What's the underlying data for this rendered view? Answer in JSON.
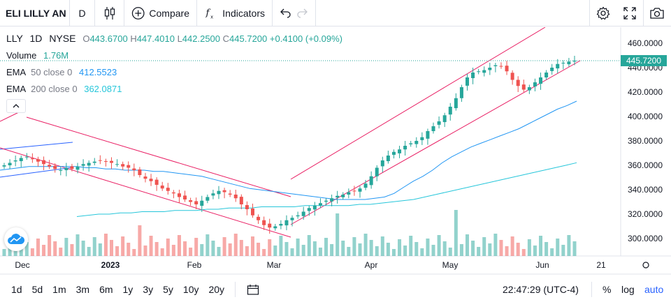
{
  "toolbar": {
    "symbol_name": "ELI LILLY AN",
    "resolution": "D",
    "compare_label": "Compare",
    "indicators_label": "Indicators"
  },
  "legend": {
    "symbol": "LLY",
    "interval": "1D",
    "exchange": "NYSE",
    "o_label": "O",
    "open": "443.6700",
    "h_label": "H",
    "high": "447.4010",
    "l_label": "L",
    "low": "442.2500",
    "c_label": "C",
    "close": "445.7200",
    "change": "+0.4100 (+0.09%)",
    "volume_label": "Volume",
    "volume_value": "1.76M",
    "ema50_label": "EMA",
    "ema50_params": "50 close 0",
    "ema50_value": "412.5523",
    "ema200_label": "EMA",
    "ema200_params": "200 close 0",
    "ema200_value": "362.0871"
  },
  "price_axis": {
    "ticks": [
      "460.0000",
      "440.0000",
      "420.0000",
      "400.0000",
      "380.0000",
      "360.0000",
      "340.0000",
      "320.0000",
      "300.0000"
    ],
    "last_price_label": "445.7200"
  },
  "time_axis": {
    "labels": [
      "Dec",
      "2023",
      "Feb",
      "Mar",
      "Apr",
      "May",
      "Jun",
      "21"
    ]
  },
  "bottom": {
    "ranges": [
      "1d",
      "5d",
      "1m",
      "3m",
      "6m",
      "1y",
      "3y",
      "5y",
      "10y",
      "20y"
    ],
    "clock": "22:47:29 (UTC-4)",
    "percent_label": "%",
    "log_label": "log",
    "auto_label": "auto"
  },
  "colors": {
    "up": "#26a69a",
    "down": "#ef5350",
    "ema50": "#2196f3",
    "ema200": "#26c6da",
    "trendlines": "#e91e63",
    "accent": "#2962ff"
  },
  "chart_data": {
    "type": "candlestick",
    "symbol": "LLY",
    "interval": "1D",
    "exchange": "NYSE",
    "ylim": [
      290,
      470
    ],
    "last_ohlc": {
      "open": 443.67,
      "high": 447.401,
      "low": 442.25,
      "close": 445.72
    },
    "close_series": [
      360,
      362,
      364,
      366,
      367,
      365,
      363,
      361,
      359,
      357,
      356,
      358,
      357,
      359,
      361,
      362,
      363,
      364,
      363,
      362,
      361,
      359,
      358,
      356,
      352,
      349,
      347,
      344,
      341,
      339,
      337,
      334,
      332,
      330,
      328,
      331,
      334,
      337,
      339,
      338,
      336,
      333,
      328,
      324,
      319,
      315,
      311,
      309,
      310,
      312,
      315,
      317,
      319,
      322,
      325,
      327,
      329,
      331,
      333,
      335,
      336,
      338,
      339,
      341,
      345,
      351,
      358,
      364,
      368,
      371,
      373,
      376,
      378,
      380,
      383,
      388,
      392,
      396,
      401,
      408,
      415,
      424,
      432,
      436,
      437,
      438,
      440,
      442,
      441,
      437,
      430,
      425,
      422,
      424,
      428,
      432,
      436,
      440,
      443,
      444,
      445,
      445.72
    ],
    "ema50": [
      356,
      357,
      358,
      359,
      359,
      359,
      359,
      359,
      359,
      358,
      358,
      357,
      357,
      356,
      356,
      356,
      355,
      355,
      354,
      353,
      352,
      351,
      349,
      347,
      345,
      343,
      341,
      340,
      339,
      338,
      337,
      336,
      335,
      334,
      333,
      332,
      332,
      332,
      332,
      333,
      334,
      337,
      342,
      347,
      351,
      356,
      362,
      367,
      371,
      375,
      378,
      381,
      384,
      387,
      390,
      394,
      398,
      402,
      406,
      409,
      412.55
    ],
    "ema200": [
      318,
      319,
      320,
      320,
      321,
      321,
      322,
      322,
      322,
      323,
      323,
      323,
      324,
      324,
      325,
      325,
      325,
      326,
      326,
      326,
      326,
      327,
      327,
      327,
      327,
      327,
      328,
      328,
      329,
      330,
      331,
      332,
      334,
      336,
      338,
      340,
      342,
      344,
      346,
      348,
      350,
      352,
      354,
      356,
      358,
      360,
      362.09
    ]
  }
}
